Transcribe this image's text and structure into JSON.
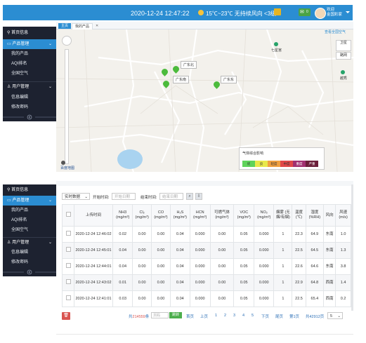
{
  "header": {
    "datetime": "2020-12-24  12:47:22",
    "weather": "15℃~23℃ 无持续风向 <3级",
    "mail_count": "0",
    "user_line1": "欢迎",
    "user_line2": "金国彩家"
  },
  "sidebar": {
    "items": [
      {
        "label": "首页信息"
      },
      {
        "label": "产品管理"
      },
      {
        "label": "我的产品"
      },
      {
        "label": "AQI排名"
      },
      {
        "label": "全国空气"
      },
      {
        "label": "用户管理"
      },
      {
        "label": "信息编辑"
      },
      {
        "label": "修改密码"
      }
    ]
  },
  "tabs_top": {
    "home": "主页",
    "current": "我的产品",
    "close": "✕"
  },
  "map": {
    "top_link": "查看全国空气",
    "satellite_label": "卫星",
    "road_label": "路网",
    "markers": [
      {
        "label": "广东北"
      },
      {
        "label": "广东南"
      },
      {
        "label": "广东东"
      }
    ],
    "pois": [
      "七星宫",
      "越秀"
    ],
    "legend_title": "气体综合影响",
    "legend_levels": [
      {
        "name": "优",
        "color": "#5fd35a"
      },
      {
        "name": "良",
        "color": "#e8e84a"
      },
      {
        "name": "轻度",
        "color": "#f0a040"
      },
      {
        "name": "中度",
        "color": "#e04848"
      },
      {
        "name": "重度",
        "color": "#a03070"
      },
      {
        "name": "严重",
        "color": "#6a1f3a"
      }
    ],
    "brand": "百度地图"
  },
  "filter": {
    "mode": "实时数据",
    "start_label": "开始时间:",
    "start_placeholder": "开始日期",
    "end_label": "结束时间:",
    "end_placeholder": "结束日期"
  },
  "table": {
    "headers": [
      "上传时间",
      "NH3 (mg/m³)",
      "Cl₂ (mg/m³)",
      "CO (mg/m³)",
      "H₂S (mg/m³)",
      "HCN (mg/m³)",
      "可燃气体 (mg/m³)",
      "VOC (mg/m³)",
      "NO₂ (mg/m³)",
      "烟雾 (无烟/有烟)",
      "温度 (℃)",
      "湿度 (%RH)",
      "风向",
      "风速 (m/s)"
    ],
    "rows": [
      [
        "2020-12-24 12:46:02",
        "0.02",
        "0.00",
        "0.00",
        "0.04",
        "0.000",
        "0.00",
        "0.05",
        "0.000",
        "1",
        "22.3",
        "64.9",
        "东南",
        "1.0"
      ],
      [
        "2020-12-24 12:45:01",
        "0.04",
        "0.00",
        "0.00",
        "0.04",
        "0.000",
        "0.00",
        "0.05",
        "0.000",
        "1",
        "22.5",
        "64.5",
        "东南",
        "1.3"
      ],
      [
        "2020-12-24 12:44:01",
        "0.04",
        "0.00",
        "0.00",
        "0.04",
        "0.000",
        "0.00",
        "0.05",
        "0.000",
        "1",
        "22.6",
        "64.6",
        "东南",
        "3.8"
      ],
      [
        "2020-12-24 12:43:02",
        "0.01",
        "0.00",
        "0.00",
        "0.04",
        "0.000",
        "0.00",
        "0.05",
        "0.000",
        "1",
        "22.9",
        "64.8",
        "西南",
        "1.4"
      ],
      [
        "2020-12-24 12:41:01",
        "0.03",
        "0.00",
        "0.00",
        "0.04",
        "0.000",
        "0.00",
        "0.05",
        "0.000",
        "1",
        "22.5",
        "65.4",
        "西南",
        "0.2"
      ]
    ]
  },
  "pager": {
    "delete_icon": "trash-icon",
    "total_prefix": "共",
    "total_count": "214559",
    "total_suffix": "条",
    "page_placeholder": "页码",
    "go": "跳转",
    "first": "首页",
    "prev": "上页",
    "pages": [
      "1",
      "2",
      "3",
      "4",
      "5"
    ],
    "next": "下页",
    "last": "尾页",
    "current_page": "第1页",
    "total_pages": "共42912页",
    "page_size": "5"
  }
}
